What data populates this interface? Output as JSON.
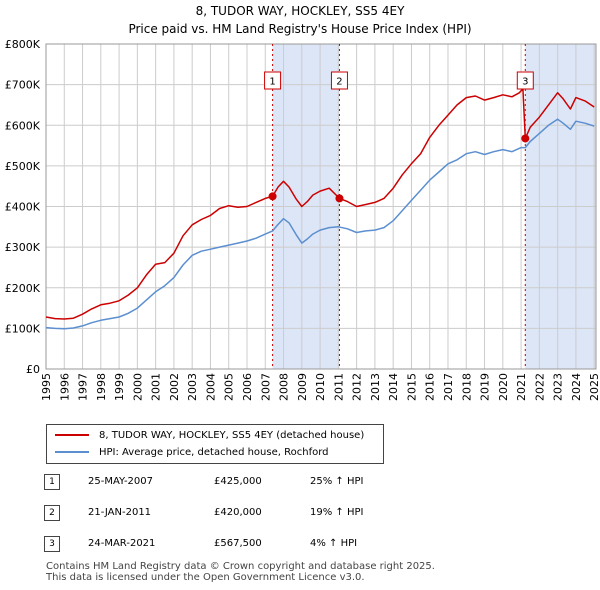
{
  "chart_data": {
    "type": "line",
    "title": "8, TUDOR WAY, HOCKLEY, SS5 4EY",
    "subtitle": "Price paid vs. HM Land Registry's House Price Index (HPI)",
    "xlim": [
      1995,
      2025.1
    ],
    "ylim": [
      0,
      800000
    ],
    "y_ticks": [
      0,
      100000,
      200000,
      300000,
      400000,
      500000,
      600000,
      700000,
      800000
    ],
    "y_tick_labels": [
      "£0",
      "£100K",
      "£200K",
      "£300K",
      "£400K",
      "£500K",
      "£600K",
      "£700K",
      "£800K"
    ],
    "x_ticks": [
      1995,
      1996,
      1997,
      1998,
      1999,
      2000,
      2001,
      2002,
      2003,
      2004,
      2005,
      2006,
      2007,
      2008,
      2009,
      2010,
      2011,
      2012,
      2013,
      2014,
      2015,
      2016,
      2017,
      2018,
      2019,
      2020,
      2021,
      2022,
      2023,
      2024,
      2025
    ],
    "x_tick_labels": [
      "1995",
      "1996",
      "1997",
      "1998",
      "1999",
      "2000",
      "2001",
      "2002",
      "2003",
      "2004",
      "2005",
      "2006",
      "2007",
      "2008",
      "2009",
      "2010",
      "2011",
      "2012",
      "2013",
      "2014",
      "2015",
      "2016",
      "2017",
      "2018",
      "2019",
      "2020",
      "2021",
      "2022",
      "2023",
      "2024",
      "2025"
    ],
    "grid": true,
    "colors": {
      "price": "#cc0000",
      "hpi": "#5b8fd0",
      "shade": "#dde6f7",
      "grid": "#cccccc",
      "vline": "#cc0000"
    },
    "series": [
      {
        "name": "8, TUDOR WAY, HOCKLEY, SS5 4EY (detached house)",
        "color": "#cc0000",
        "x": [
          1995.0,
          1995.5,
          1996.0,
          1996.5,
          1997.0,
          1997.5,
          1998.0,
          1998.5,
          1999.0,
          1999.5,
          2000.0,
          2000.5,
          2001.0,
          2001.5,
          2002.0,
          2002.5,
          2003.0,
          2003.5,
          2004.0,
          2004.5,
          2005.0,
          2005.5,
          2006.0,
          2006.5,
          2007.0,
          2007.4,
          2007.7,
          2008.0,
          2008.3,
          2008.7,
          2009.0,
          2009.3,
          2009.6,
          2010.0,
          2010.5,
          2011.06,
          2011.5,
          2012.0,
          2012.5,
          2013.0,
          2013.5,
          2014.0,
          2014.5,
          2015.0,
          2015.5,
          2016.0,
          2016.5,
          2017.0,
          2017.5,
          2018.0,
          2018.5,
          2019.0,
          2019.5,
          2020.0,
          2020.5,
          2020.9,
          2021.1,
          2021.23,
          2021.5,
          2022.0,
          2022.5,
          2023.0,
          2023.3,
          2023.7,
          2024.0,
          2024.5,
          2025.0
        ],
        "values": [
          128000,
          124000,
          123000,
          125000,
          135000,
          148000,
          158000,
          162000,
          168000,
          182000,
          200000,
          232000,
          258000,
          262000,
          285000,
          328000,
          355000,
          368000,
          378000,
          395000,
          402000,
          398000,
          400000,
          410000,
          420000,
          425000,
          448000,
          462000,
          448000,
          418000,
          400000,
          412000,
          428000,
          438000,
          445000,
          420000,
          412000,
          400000,
          405000,
          410000,
          420000,
          445000,
          478000,
          505000,
          530000,
          570000,
          600000,
          625000,
          650000,
          668000,
          672000,
          662000,
          668000,
          675000,
          670000,
          680000,
          690000,
          567500,
          595000,
          620000,
          650000,
          680000,
          665000,
          640000,
          668000,
          660000,
          645000
        ]
      },
      {
        "name": "HPI: Average price, detached house, Rochford",
        "color": "#5b8fd0",
        "x": [
          1995.0,
          1995.5,
          1996.0,
          1996.5,
          1997.0,
          1997.5,
          1998.0,
          1998.5,
          1999.0,
          1999.5,
          2000.0,
          2000.5,
          2001.0,
          2001.5,
          2002.0,
          2002.5,
          2003.0,
          2003.5,
          2004.0,
          2004.5,
          2005.0,
          2005.5,
          2006.0,
          2006.5,
          2007.0,
          2007.4,
          2007.7,
          2008.0,
          2008.3,
          2008.7,
          2009.0,
          2009.3,
          2009.6,
          2010.0,
          2010.5,
          2011.0,
          2011.5,
          2012.0,
          2012.5,
          2013.0,
          2013.5,
          2014.0,
          2014.5,
          2015.0,
          2015.5,
          2016.0,
          2016.5,
          2017.0,
          2017.5,
          2018.0,
          2018.5,
          2019.0,
          2019.5,
          2020.0,
          2020.5,
          2021.0,
          2021.23,
          2021.5,
          2022.0,
          2022.5,
          2023.0,
          2023.3,
          2023.7,
          2024.0,
          2024.5,
          2025.0
        ],
        "values": [
          102000,
          100000,
          99000,
          101000,
          106000,
          114000,
          120000,
          124000,
          128000,
          137000,
          150000,
          170000,
          190000,
          205000,
          225000,
          256000,
          280000,
          290000,
          295000,
          300000,
          305000,
          310000,
          315000,
          322000,
          332000,
          340000,
          356000,
          370000,
          360000,
          330000,
          310000,
          320000,
          332000,
          342000,
          348000,
          350000,
          345000,
          336000,
          340000,
          342000,
          348000,
          365000,
          390000,
          415000,
          440000,
          465000,
          485000,
          505000,
          515000,
          530000,
          535000,
          528000,
          535000,
          540000,
          535000,
          545000,
          545000,
          560000,
          580000,
          600000,
          615000,
          605000,
          590000,
          610000,
          605000,
          598000
        ]
      }
    ],
    "sales": [
      {
        "label": "1",
        "x": 2007.4,
        "value": 425000
      },
      {
        "label": "2",
        "x": 2011.06,
        "value": 420000
      },
      {
        "label": "3",
        "x": 2021.23,
        "value": 567500
      }
    ],
    "shaded_ranges": [
      [
        2007.4,
        2011.06
      ],
      [
        2021.23,
        2025.1
      ]
    ]
  },
  "legend": {
    "price_label": "8, TUDOR WAY, HOCKLEY, SS5 4EY (detached house)",
    "hpi_label": "HPI: Average price, detached house, Rochford"
  },
  "sales_table": [
    {
      "num": "1",
      "date": "25-MAY-2007",
      "price": "£425,000",
      "hpi": "25% ↑ HPI"
    },
    {
      "num": "2",
      "date": "21-JAN-2011",
      "price": "£420,000",
      "hpi": "19% ↑ HPI"
    },
    {
      "num": "3",
      "date": "24-MAR-2021",
      "price": "£567,500",
      "hpi": "4% ↑ HPI"
    }
  ],
  "footer": {
    "line1": "Contains HM Land Registry data © Crown copyright and database right 2025.",
    "line2": "This data is licensed under the Open Government Licence v3.0."
  }
}
